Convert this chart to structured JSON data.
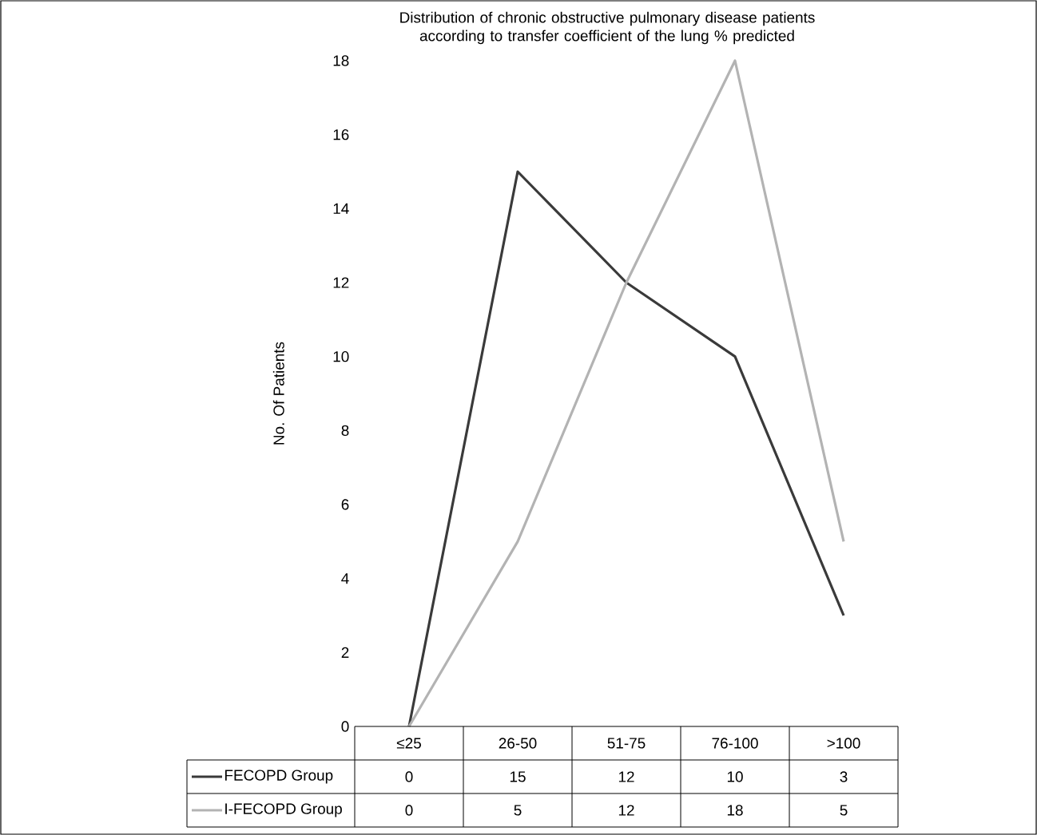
{
  "chart_data": {
    "type": "line",
    "title": "Distribution of chronic obstructive pulmonary disease patients according to transfer coefficient of the lung % predicted",
    "ylabel": "No. Of Patients",
    "categories": [
      "≤25",
      "26-50",
      "51-75",
      "76-100",
      ">100"
    ],
    "series": [
      {
        "name": "FECOPD Group",
        "color": "#3a3a3a",
        "values": [
          0,
          15,
          12,
          10,
          3
        ]
      },
      {
        "name": "I-FECOPD Group",
        "color": "#b3b3b3",
        "values": [
          0,
          5,
          12,
          18,
          5
        ]
      }
    ],
    "ylim": [
      0,
      18
    ],
    "yticks": [
      0,
      2,
      4,
      6,
      8,
      10,
      12,
      14,
      16,
      18
    ],
    "grid": false,
    "legend": "bottom",
    "marker": "none",
    "line_style": "solid",
    "data_labels": true
  }
}
